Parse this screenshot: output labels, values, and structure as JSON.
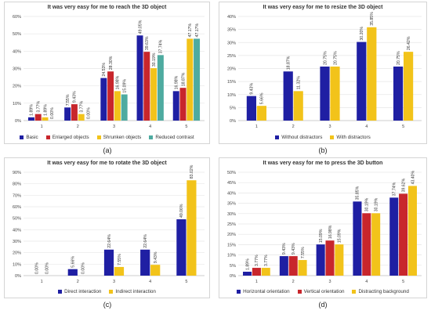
{
  "colors": {
    "blue": "#1f1fa3",
    "red": "#c8262c",
    "yellow": "#f2c31a",
    "teal": "#4eaba0",
    "grid": "#e6e6e6"
  },
  "chart_data": [
    {
      "type": "bar",
      "panel": "a",
      "caption": "(a)",
      "title": "It was very easy for me to reach the 3D object",
      "categories": [
        "1",
        "2",
        "3",
        "4",
        "5"
      ],
      "ylim": [
        0,
        60
      ],
      "yticks": [
        "0%",
        "10%",
        "20%",
        "30%",
        "40%",
        "50%",
        "60%"
      ],
      "grid": true,
      "legend_position": "bottom",
      "series": [
        {
          "name": "Basic",
          "color": "#1f1fa3",
          "values": [
            1.89,
            7.55,
            24.53,
            49.05,
            16.98
          ],
          "labels": [
            "1.89%",
            "7.55%",
            "24.53%",
            "49.05%",
            "16.98%"
          ]
        },
        {
          "name": "Enlarged objects",
          "color": "#c8262c",
          "values": [
            3.77,
            9.43,
            28.3,
            39.63,
            18.87
          ],
          "labels": [
            "3.77%",
            "9.43%",
            "28.30%",
            "39.63%",
            "18.87%"
          ]
        },
        {
          "name": "Shrunken objects",
          "color": "#f2c31a",
          "values": [
            1.89,
            3.77,
            16.98,
            30.19,
            47.17
          ],
          "labels": [
            "1.89%",
            "3.77%",
            "16.98%",
            "30.19%",
            "47.17%"
          ]
        },
        {
          "name": "Reduced contrast",
          "color": "#4eaba0",
          "values": [
            0.0,
            0.0,
            15.09,
            37.74,
            47.17
          ],
          "labels": [
            "0.00%",
            "0.00%",
            "15.09%",
            "37.74%",
            "47.17%"
          ]
        }
      ]
    },
    {
      "type": "bar",
      "panel": "b",
      "caption": "(b)",
      "title": "It was very easy for me to resize the 3D object",
      "categories": [
        "1",
        "2",
        "3",
        "4",
        "5"
      ],
      "ylim": [
        0,
        40
      ],
      "yticks": [
        "0%",
        "5%",
        "10%",
        "15%",
        "20%",
        "25%",
        "30%",
        "35%",
        "40%"
      ],
      "grid": true,
      "legend_position": "bottom",
      "series": [
        {
          "name": "Without distractors",
          "color": "#1f1fa3",
          "values": [
            9.43,
            18.87,
            20.75,
            30.2,
            20.75
          ],
          "labels": [
            "9.43%",
            "18.87%",
            "20.75%",
            "30.20%",
            "20.75%"
          ]
        },
        {
          "name": "With distractors",
          "color": "#f2c31a",
          "values": [
            5.66,
            11.32,
            20.75,
            35.85,
            26.42
          ],
          "labels": [
            "5.66%",
            "11.32%",
            "20.75%",
            "35.85%",
            "26.42%"
          ]
        }
      ]
    },
    {
      "type": "bar",
      "panel": "c",
      "caption": "(c)",
      "title": "It was very easy for me to rotate the 3D object",
      "categories": [
        "1",
        "2",
        "3",
        "4",
        "5"
      ],
      "ylim": [
        0,
        90
      ],
      "yticks": [
        "0%",
        "10%",
        "20%",
        "30%",
        "40%",
        "50%",
        "60%",
        "70%",
        "80%",
        "90%"
      ],
      "grid": true,
      "legend_position": "bottom",
      "series": [
        {
          "name": "Direct interaction",
          "color": "#1f1fa3",
          "values": [
            0.0,
            5.66,
            22.64,
            22.64,
            49.06
          ],
          "labels": [
            "0.00%",
            "5.66%",
            "22.64%",
            "22.64%",
            "49.06%"
          ]
        },
        {
          "name": "Indirect interaction",
          "color": "#f2c31a",
          "values": [
            0.0,
            0.0,
            7.55,
            9.43,
            83.02
          ],
          "labels": [
            "0.00%",
            "0.00%",
            "7.55%",
            "9.43%",
            "83.02%"
          ]
        }
      ]
    },
    {
      "type": "bar",
      "panel": "d",
      "caption": "(d)",
      "title": "It was very easy for me to press the 3D button",
      "categories": [
        "1",
        "2",
        "3",
        "4",
        "5"
      ],
      "ylim": [
        0,
        50
      ],
      "yticks": [
        "0%",
        "5%",
        "10%",
        "15%",
        "20%",
        "25%",
        "30%",
        "35%",
        "40%",
        "45%",
        "50%"
      ],
      "grid": true,
      "legend_position": "bottom",
      "series": [
        {
          "name": "Horizontal orientation",
          "color": "#1f1fa3",
          "values": [
            1.89,
            9.43,
            15.09,
            35.85,
            37.74
          ],
          "labels": [
            "1.89%",
            "9.43%",
            "15.09%",
            "35.85%",
            "37.74%"
          ]
        },
        {
          "name": "Vertical orientation",
          "color": "#c8262c",
          "values": [
            3.77,
            9.43,
            16.98,
            30.19,
            39.62
          ],
          "labels": [
            "3.77%",
            "9.43%",
            "16.98%",
            "30.19%",
            "39.62%"
          ]
        },
        {
          "name": "Distracting background",
          "color": "#f2c31a",
          "values": [
            3.77,
            7.55,
            15.09,
            30.19,
            43.4
          ],
          "labels": [
            "3.77%",
            "7.55%",
            "15.09%",
            "30.19%",
            "43.40%"
          ]
        }
      ]
    }
  ]
}
